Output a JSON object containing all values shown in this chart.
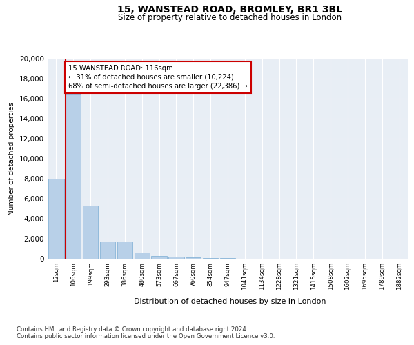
{
  "title": "15, WANSTEAD ROAD, BROMLEY, BR1 3BL",
  "subtitle": "Size of property relative to detached houses in London",
  "xlabel": "Distribution of detached houses by size in London",
  "ylabel": "Number of detached properties",
  "bar_color": "#b8d0e8",
  "bar_edge_color": "#7aadd4",
  "background_color": "#e8eef5",
  "grid_color": "#ffffff",
  "annotation_text": "15 WANSTEAD ROAD: 116sqm\n← 31% of detached houses are smaller (10,224)\n68% of semi-detached houses are larger (22,386) →",
  "property_size_idx": 1,
  "vline_color": "#cc0000",
  "annotation_box_color": "#cc0000",
  "ylim": [
    0,
    20000
  ],
  "yticks": [
    0,
    2000,
    4000,
    6000,
    8000,
    10000,
    12000,
    14000,
    16000,
    18000,
    20000
  ],
  "bin_labels": [
    "12sqm",
    "106sqm",
    "199sqm",
    "293sqm",
    "386sqm",
    "480sqm",
    "573sqm",
    "667sqm",
    "760sqm",
    "854sqm",
    "947sqm",
    "1041sqm",
    "1134sqm",
    "1228sqm",
    "1321sqm",
    "1415sqm",
    "1508sqm",
    "1602sqm",
    "1695sqm",
    "1789sqm",
    "1882sqm"
  ],
  "bar_heights": [
    8000,
    16500,
    5300,
    1750,
    1750,
    600,
    300,
    200,
    150,
    100,
    50,
    30,
    20,
    15,
    10,
    8,
    5,
    4,
    3,
    2,
    0
  ],
  "footer_text": "Contains HM Land Registry data © Crown copyright and database right 2024.\nContains public sector information licensed under the Open Government Licence v3.0.",
  "title_fontsize": 10,
  "subtitle_fontsize": 8.5
}
